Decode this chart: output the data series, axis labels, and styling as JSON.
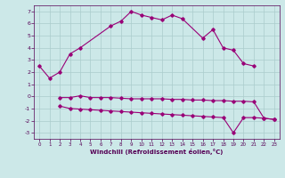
{
  "xlabel": "Windchill (Refroidissement éolien,°C)",
  "bg_color": "#cce8e8",
  "grid_color": "#aacccc",
  "line_color": "#990077",
  "line1_x": [
    0,
    1,
    2,
    3,
    4,
    7,
    8,
    9,
    10,
    11,
    12,
    13,
    14,
    16,
    17,
    18,
    19,
    20,
    21
  ],
  "line1_y": [
    2.5,
    1.5,
    2.0,
    3.5,
    4.0,
    5.8,
    6.2,
    7.0,
    6.7,
    6.5,
    6.3,
    6.7,
    6.4,
    4.8,
    5.5,
    4.0,
    3.8,
    2.7,
    2.5
  ],
  "line2_x": [
    2,
    3,
    4,
    5,
    6,
    7,
    8,
    9,
    10,
    11,
    12,
    13,
    14,
    15,
    16,
    17,
    18,
    19,
    20,
    21,
    22,
    23
  ],
  "line2_y": [
    -0.1,
    -0.1,
    0.05,
    -0.1,
    -0.1,
    -0.1,
    -0.15,
    -0.2,
    -0.2,
    -0.2,
    -0.2,
    -0.25,
    -0.25,
    -0.3,
    -0.3,
    -0.35,
    -0.35,
    -0.4,
    -0.4,
    -0.45,
    -1.8,
    -1.9
  ],
  "line3_x": [
    2,
    3,
    4,
    5,
    6,
    7,
    8,
    9,
    10,
    11,
    12,
    13,
    14,
    15,
    16,
    17,
    18,
    19,
    20,
    21,
    22,
    23
  ],
  "line3_y": [
    -0.8,
    -1.0,
    -1.05,
    -1.1,
    -1.15,
    -1.2,
    -1.25,
    -1.3,
    -1.35,
    -1.4,
    -1.45,
    -1.5,
    -1.55,
    -1.6,
    -1.65,
    -1.7,
    -1.75,
    -3.0,
    -1.75,
    -1.75,
    -1.8,
    -1.9
  ],
  "ylim": [
    -3.5,
    7.5
  ],
  "xlim": [
    -0.5,
    23.5
  ],
  "yticks": [
    -3,
    -2,
    -1,
    0,
    1,
    2,
    3,
    4,
    5,
    6,
    7
  ],
  "xticks": [
    0,
    1,
    2,
    3,
    4,
    5,
    6,
    7,
    8,
    9,
    10,
    11,
    12,
    13,
    14,
    15,
    16,
    17,
    18,
    19,
    20,
    21,
    22,
    23
  ]
}
